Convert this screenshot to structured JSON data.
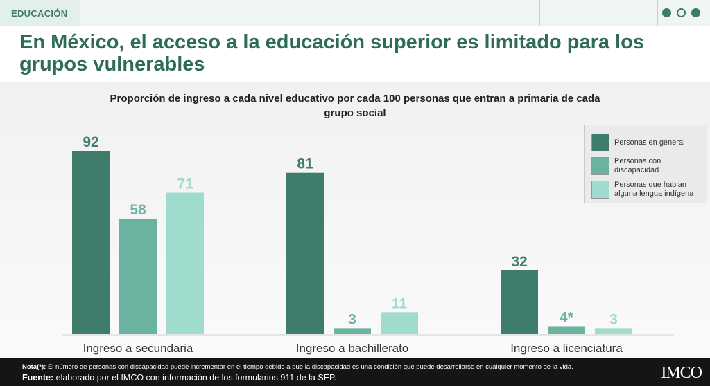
{
  "header": {
    "section_tag": "EDUCACIÓN"
  },
  "title": "En México, el acceso a la educación superior es limitado para los grupos vulnerables",
  "colors": {
    "series": [
      "#3e7d6b",
      "#6ab3a0",
      "#a0dccd"
    ],
    "label": [
      "#3e7d6b",
      "#6ab3a0",
      "#a0dccd"
    ]
  },
  "chart_data": {
    "type": "bar",
    "title": "Proporción de ingreso a cada nivel educativo por cada 100 personas que entran a primaria de cada grupo social",
    "categories": [
      "Ingreso a secundaria",
      "Ingreso a bachillerato",
      "Ingreso a licenciatura"
    ],
    "series": [
      {
        "name": "Personas en general",
        "values": [
          92,
          81,
          32
        ],
        "labels": [
          "92",
          "81",
          "32"
        ]
      },
      {
        "name": "Personas con discapacidad",
        "values": [
          58,
          3,
          4
        ],
        "labels": [
          "58",
          "3",
          "4*"
        ]
      },
      {
        "name": "Personas que hablan alguna lengua indígena",
        "values": [
          71,
          11,
          3
        ],
        "labels": [
          "71",
          "11",
          "3"
        ]
      }
    ],
    "ylim": [
      0,
      100
    ],
    "grid": false,
    "legend_position": "top-right"
  },
  "footer": {
    "note_label": "Nota(*):",
    "note_text": " El número de personas con discapacidad puede incrementar en el tiempo debido a que la discapacidad es una condición que puede desarrollarse en cualquier momento de la vida.",
    "source_label": "Fuente:",
    "source_text": " elaborado por el IMCO con información de los formularios 911 de la SEP.",
    "logo": "IMCO"
  }
}
